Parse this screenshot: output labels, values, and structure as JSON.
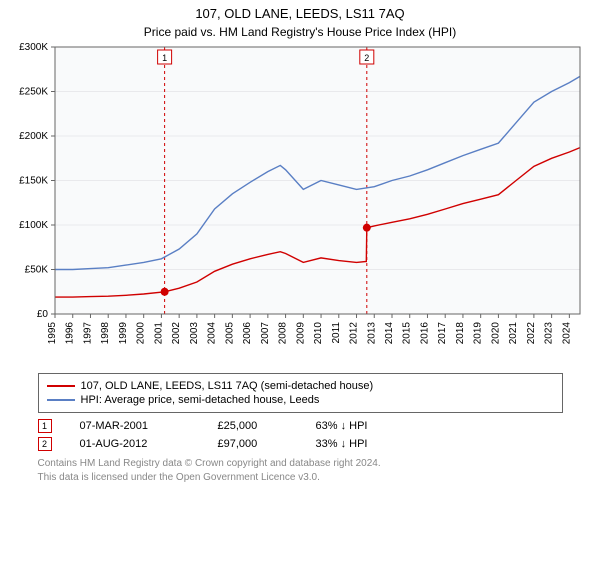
{
  "title": "107, OLD LANE, LEEDS, LS11 7AQ",
  "subtitle": "Price paid vs. HM Land Registry's House Price Index (HPI)",
  "chart": {
    "type": "line",
    "background_color": "#f9fafb",
    "grid_color": "#e9e9ec",
    "border_color": "#666666",
    "yaxis": {
      "min": 0,
      "max": 300000,
      "step": 50000,
      "tick_labels": [
        "£0",
        "£50K",
        "£100K",
        "£150K",
        "£200K",
        "£250K",
        "£300K"
      ]
    },
    "xaxis": {
      "min": 1995,
      "max": 2024.6,
      "ticks_start": 1995,
      "ticks_end": 2024,
      "tick_labels": [
        "1995",
        "1996",
        "1997",
        "1998",
        "1999",
        "2000",
        "2001",
        "2002",
        "2003",
        "2004",
        "2005",
        "2006",
        "2007",
        "2008",
        "2009",
        "2010",
        "2011",
        "2012",
        "2013",
        "2014",
        "2015",
        "2016",
        "2017",
        "2018",
        "2019",
        "2020",
        "2021",
        "2022",
        "2023",
        "2024"
      ]
    },
    "series": {
      "hpi": {
        "label": "HPI: Average price, semi-detached house, Leeds",
        "color": "#5a7fc4",
        "data": [
          [
            1995,
            50000
          ],
          [
            1996,
            50000
          ],
          [
            1997,
            51000
          ],
          [
            1998,
            52000
          ],
          [
            1999,
            55000
          ],
          [
            2000,
            58000
          ],
          [
            2001,
            62000
          ],
          [
            2002,
            73000
          ],
          [
            2003,
            90000
          ],
          [
            2004,
            118000
          ],
          [
            2005,
            135000
          ],
          [
            2006,
            148000
          ],
          [
            2007,
            160000
          ],
          [
            2007.7,
            167000
          ],
          [
            2008,
            162000
          ],
          [
            2009,
            140000
          ],
          [
            2010,
            150000
          ],
          [
            2011,
            145000
          ],
          [
            2012,
            140000
          ],
          [
            2013,
            143000
          ],
          [
            2014,
            150000
          ],
          [
            2015,
            155000
          ],
          [
            2016,
            162000
          ],
          [
            2017,
            170000
          ],
          [
            2018,
            178000
          ],
          [
            2019,
            185000
          ],
          [
            2020,
            192000
          ],
          [
            2021,
            215000
          ],
          [
            2022,
            238000
          ],
          [
            2023,
            250000
          ],
          [
            2024,
            260000
          ],
          [
            2024.6,
            267000
          ]
        ]
      },
      "price": {
        "label": "107, OLD LANE, LEEDS, LS11 7AQ (semi-detached house)",
        "color": "#d00000",
        "data": [
          [
            1995,
            19000
          ],
          [
            1996,
            19000
          ],
          [
            1997,
            19500
          ],
          [
            1998,
            20000
          ],
          [
            1999,
            21000
          ],
          [
            2000,
            22500
          ],
          [
            2001.18,
            25000
          ],
          [
            2002,
            29000
          ],
          [
            2003,
            36000
          ],
          [
            2004,
            48000
          ],
          [
            2005,
            56000
          ],
          [
            2006,
            62000
          ],
          [
            2007,
            67000
          ],
          [
            2007.7,
            70000
          ],
          [
            2008,
            68000
          ],
          [
            2009,
            58000
          ],
          [
            2010,
            63000
          ],
          [
            2011,
            60000
          ],
          [
            2012,
            58000
          ],
          [
            2012.55,
            59000
          ],
          [
            2012.58,
            97000
          ],
          [
            2013,
            99000
          ],
          [
            2014,
            103000
          ],
          [
            2015,
            107000
          ],
          [
            2016,
            112000
          ],
          [
            2017,
            118000
          ],
          [
            2018,
            124000
          ],
          [
            2019,
            129000
          ],
          [
            2020,
            134000
          ],
          [
            2021,
            150000
          ],
          [
            2022,
            166000
          ],
          [
            2023,
            175000
          ],
          [
            2024,
            182000
          ],
          [
            2024.6,
            187000
          ]
        ]
      }
    },
    "sale_markers": [
      {
        "n": "1",
        "x": 2001.18,
        "y": 25000,
        "dot_fill": "#d00000"
      },
      {
        "n": "2",
        "x": 2012.58,
        "y": 97000,
        "dot_fill": "#d00000"
      }
    ],
    "marker_box_border": "#d00000"
  },
  "legend": {
    "items": [
      {
        "kind": "line",
        "color": "#d00000",
        "label": "107, OLD LANE, LEEDS, LS11 7AQ (semi-detached house)"
      },
      {
        "kind": "line",
        "color": "#5a7fc4",
        "label": "HPI: Average price, semi-detached house, Leeds"
      }
    ]
  },
  "sales": [
    {
      "n": "1",
      "date": "07-MAR-2001",
      "price": "£25,000",
      "diff": "63% ↓ HPI"
    },
    {
      "n": "2",
      "date": "01-AUG-2012",
      "price": "£97,000",
      "diff": "33% ↓ HPI"
    }
  ],
  "footer_line1": "Contains HM Land Registry data © Crown copyright and database right 2024.",
  "footer_line2": "This data is licensed under the Open Government Licence v3.0."
}
